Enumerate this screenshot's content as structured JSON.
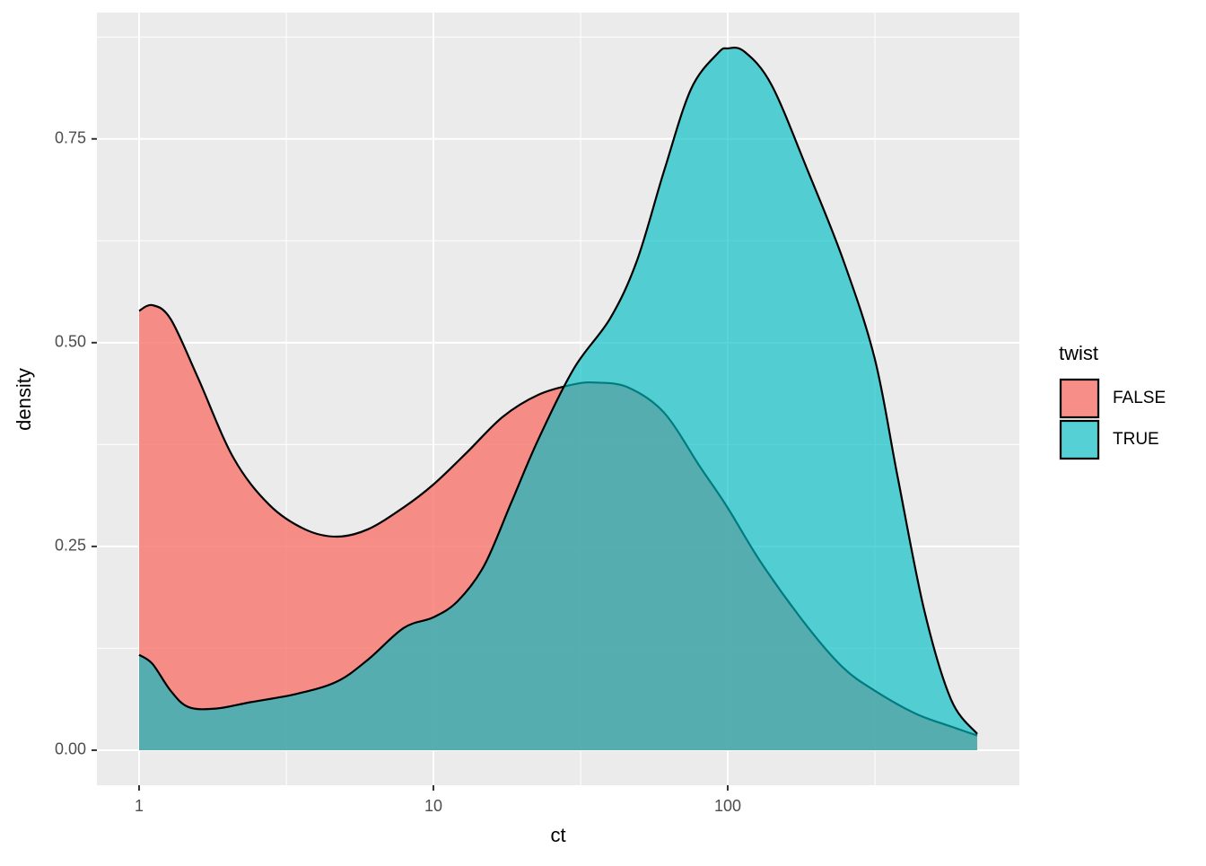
{
  "chart_data": {
    "type": "density",
    "x_label": "ct",
    "y_label": "density",
    "xscale": "log",
    "grid": true,
    "legend_position": "right",
    "legend_title": "twist",
    "xlim": [
      0.719,
      979
    ],
    "xticks": [
      1,
      10,
      100
    ],
    "ylim": [
      -0.043,
      0.905
    ],
    "yticks": [
      {
        "value": 0,
        "label": "0.00"
      },
      {
        "value": 0.25,
        "label": "0.25"
      },
      {
        "value": 0.5,
        "label": "0.50"
      },
      {
        "value": 0.75,
        "label": "0.75"
      }
    ],
    "series": [
      {
        "name": "FALSE",
        "color": "#F8766D",
        "x": [
          1,
          1.11,
          1.28,
          1.58,
          2.09,
          2.77,
          3.66,
          4.69,
          5.99,
          7.93,
          10,
          12.97,
          17.2,
          22.7,
          30.1,
          35.9,
          45.9,
          60.8,
          80.4,
          99.3,
          131,
          187,
          247,
          316,
          434,
          574,
          704
        ],
        "values": [
          0.539,
          0.546,
          0.529,
          0.458,
          0.359,
          0.301,
          0.271,
          0.262,
          0.271,
          0.298,
          0.326,
          0.365,
          0.409,
          0.436,
          0.449,
          0.451,
          0.445,
          0.414,
          0.348,
          0.299,
          0.228,
          0.151,
          0.101,
          0.073,
          0.045,
          0.029,
          0.018
        ]
      },
      {
        "name": "TRUE",
        "color": "#00BFC4",
        "x": [
          1,
          1.11,
          1.28,
          1.47,
          1.82,
          2.4,
          3.42,
          4.69,
          5.99,
          7.93,
          10,
          12.1,
          14.9,
          18.4,
          22.7,
          30.1,
          39.9,
          49.2,
          60.8,
          75.0,
          92.5,
          100,
          114,
          141,
          187,
          247,
          316,
          377,
          465,
          574,
          704
        ],
        "values": [
          0.117,
          0.106,
          0.073,
          0.053,
          0.051,
          0.059,
          0.069,
          0.084,
          0.111,
          0.15,
          0.163,
          0.183,
          0.227,
          0.304,
          0.381,
          0.469,
          0.53,
          0.601,
          0.711,
          0.811,
          0.855,
          0.861,
          0.857,
          0.816,
          0.711,
          0.601,
          0.48,
          0.337,
          0.172,
          0.062,
          0.02
        ]
      }
    ]
  }
}
